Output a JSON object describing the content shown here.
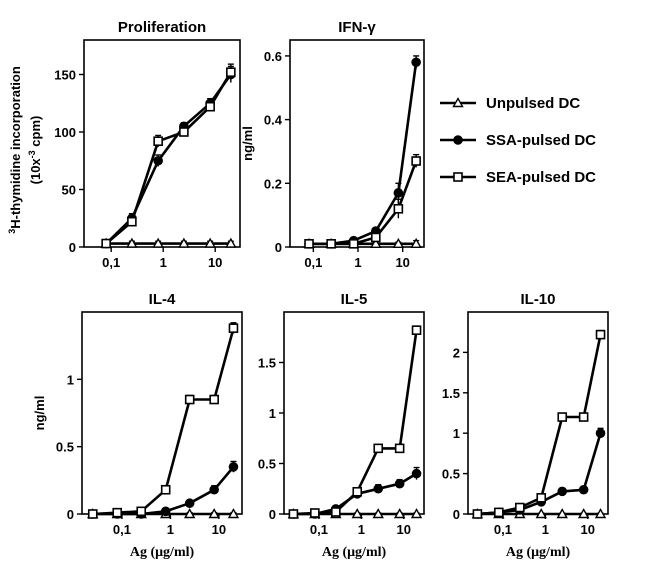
{
  "figure": {
    "legend": [
      {
        "name": "Unpulsed DC",
        "marker": "open-triangle"
      },
      {
        "name": "SSA-pulsed DC",
        "marker": "filled-circle"
      },
      {
        "name": "SEA-pulsed DC",
        "marker": "open-square"
      }
    ]
  },
  "chart_data": [
    {
      "id": "proliferation",
      "type": "line",
      "title": "Proliferation",
      "ylabel_sup": "3",
      "ylabel_main": "H-thymidine incorporation",
      "ylabel_line2": "(10x",
      "ylabel_line2_sup": "-3",
      "ylabel_line2_end": " cpm)",
      "xlabel": "",
      "xscale": "log",
      "xlim": [
        0.03,
        30
      ],
      "ylim": [
        0,
        180
      ],
      "xticks": [
        {
          "v": 0.1,
          "label": "0,1"
        },
        {
          "v": 1,
          "label": "1"
        },
        {
          "v": 10,
          "label": "10"
        }
      ],
      "yticks": [
        {
          "v": 0,
          "label": "0"
        },
        {
          "v": 50,
          "label": "50"
        },
        {
          "v": 100,
          "label": "100"
        },
        {
          "v": 150,
          "label": "150"
        }
      ],
      "series": [
        {
          "name": "Unpulsed DC",
          "marker": "open-triangle",
          "x": [
            0.08,
            0.25,
            0.8,
            2.5,
            8,
            20
          ],
          "y": [
            3,
            3,
            3,
            3,
            3,
            3
          ],
          "err": [
            2,
            2,
            2,
            2,
            2,
            2
          ]
        },
        {
          "name": "SSA-pulsed DC",
          "marker": "filled-circle",
          "x": [
            0.08,
            0.25,
            0.8,
            2.5,
            8,
            20
          ],
          "y": [
            3,
            25,
            75,
            105,
            125,
            150
          ],
          "err": [
            2,
            4,
            5,
            3,
            4,
            7
          ]
        },
        {
          "name": "SEA-pulsed DC",
          "marker": "open-square",
          "x": [
            0.08,
            0.25,
            0.8,
            2.5,
            8,
            20
          ],
          "y": [
            3,
            22,
            92,
            100,
            122,
            152
          ],
          "err": [
            2,
            4,
            5,
            3,
            4,
            7
          ]
        }
      ]
    },
    {
      "id": "ifn",
      "type": "line",
      "title": "IFN-γ",
      "ylabel": "ng/ml",
      "xlabel": "",
      "xscale": "log",
      "xlim": [
        0.03,
        30
      ],
      "ylim": [
        0,
        0.65
      ],
      "xticks": [
        {
          "v": 0.1,
          "label": "0,1"
        },
        {
          "v": 1,
          "label": "1"
        },
        {
          "v": 10,
          "label": "10"
        }
      ],
      "yticks": [
        {
          "v": 0,
          "label": "0"
        },
        {
          "v": 0.2,
          "label": "0.2"
        },
        {
          "v": 0.4,
          "label": "0.4"
        },
        {
          "v": 0.6,
          "label": "0.6"
        }
      ],
      "series": [
        {
          "name": "Unpulsed DC",
          "marker": "open-triangle",
          "x": [
            0.08,
            0.25,
            0.8,
            2.5,
            8,
            20
          ],
          "y": [
            0.01,
            0.01,
            0.01,
            0.01,
            0.01,
            0.01
          ],
          "err": [
            0.005,
            0.005,
            0.005,
            0.005,
            0.005,
            0.01
          ]
        },
        {
          "name": "SSA-pulsed DC",
          "marker": "filled-circle",
          "x": [
            0.08,
            0.25,
            0.8,
            2.5,
            8,
            20
          ],
          "y": [
            0.01,
            0.01,
            0.02,
            0.05,
            0.17,
            0.58
          ],
          "err": [
            0.005,
            0.005,
            0.005,
            0.01,
            0.03,
            0.02
          ]
        },
        {
          "name": "SEA-pulsed DC",
          "marker": "open-square",
          "x": [
            0.08,
            0.25,
            0.8,
            2.5,
            8,
            20
          ],
          "y": [
            0.01,
            0.01,
            0.01,
            0.03,
            0.12,
            0.27
          ],
          "err": [
            0.005,
            0.005,
            0.005,
            0.01,
            0.03,
            0.02
          ]
        }
      ]
    },
    {
      "id": "il4",
      "type": "line",
      "title": "IL-4",
      "ylabel": "ng/ml",
      "xlabel": "Ag (μg/ml)",
      "xscale": "log",
      "xlim": [
        0.015,
        30
      ],
      "ylim": [
        0,
        1.5
      ],
      "xticks": [
        {
          "v": 0.1,
          "label": "0,1"
        },
        {
          "v": 1,
          "label": "1"
        },
        {
          "v": 10,
          "label": "10"
        }
      ],
      "yticks": [
        {
          "v": 0,
          "label": "0"
        },
        {
          "v": 0.5,
          "label": "0.5"
        },
        {
          "v": 1,
          "label": "1"
        }
      ],
      "series": [
        {
          "name": "Unpulsed DC",
          "marker": "open-triangle",
          "x": [
            0.025,
            0.08,
            0.25,
            0.8,
            2.5,
            8,
            20
          ],
          "y": [
            0,
            0,
            0,
            0,
            0,
            0,
            0
          ],
          "err": [
            0.01,
            0.01,
            0.01,
            0.01,
            0.01,
            0.01,
            0.01
          ]
        },
        {
          "name": "SSA-pulsed DC",
          "marker": "filled-circle",
          "x": [
            0.025,
            0.08,
            0.25,
            0.8,
            2.5,
            8,
            20
          ],
          "y": [
            0,
            0,
            0,
            0.02,
            0.08,
            0.18,
            0.35
          ],
          "err": [
            0.01,
            0.01,
            0.01,
            0.01,
            0.02,
            0.03,
            0.04
          ]
        },
        {
          "name": "SEA-pulsed DC",
          "marker": "open-square",
          "x": [
            0.025,
            0.08,
            0.25,
            0.8,
            2.5,
            8,
            20
          ],
          "y": [
            0,
            0.01,
            0.02,
            0.18,
            0.85,
            0.85,
            1.38
          ],
          "err": [
            0.01,
            0.01,
            0.01,
            0.03,
            0.03,
            0.03,
            0.04
          ]
        }
      ]
    },
    {
      "id": "il5",
      "type": "line",
      "title": "IL-5",
      "ylabel": "",
      "xlabel": "Ag (μg/ml)",
      "xscale": "log",
      "xlim": [
        0.015,
        30
      ],
      "ylim": [
        0,
        2
      ],
      "xticks": [
        {
          "v": 0.1,
          "label": "0,1"
        },
        {
          "v": 1,
          "label": "1"
        },
        {
          "v": 10,
          "label": "10"
        }
      ],
      "yticks": [
        {
          "v": 0,
          "label": "0"
        },
        {
          "v": 0.5,
          "label": "0.5"
        },
        {
          "v": 1,
          "label": "1"
        },
        {
          "v": 1.5,
          "label": "1.5"
        }
      ],
      "series": [
        {
          "name": "Unpulsed DC",
          "marker": "open-triangle",
          "x": [
            0.025,
            0.08,
            0.25,
            0.8,
            2.5,
            8,
            20
          ],
          "y": [
            0,
            0,
            0,
            0,
            0,
            0,
            0
          ],
          "err": [
            0.01,
            0.01,
            0.01,
            0.01,
            0.01,
            0.01,
            0.01
          ]
        },
        {
          "name": "SSA-pulsed DC",
          "marker": "filled-circle",
          "x": [
            0.025,
            0.08,
            0.25,
            0.8,
            2.5,
            8,
            20
          ],
          "y": [
            0,
            0,
            0.05,
            0.2,
            0.25,
            0.3,
            0.4
          ],
          "err": [
            0.01,
            0.01,
            0.02,
            0.03,
            0.04,
            0.04,
            0.06
          ]
        },
        {
          "name": "SEA-pulsed DC",
          "marker": "open-square",
          "x": [
            0.025,
            0.08,
            0.25,
            0.8,
            2.5,
            8,
            20
          ],
          "y": [
            0,
            0.01,
            0.02,
            0.22,
            0.65,
            0.65,
            1.82
          ],
          "err": [
            0.01,
            0.01,
            0.01,
            0.03,
            0.03,
            0.03,
            0.04
          ]
        }
      ]
    },
    {
      "id": "il10",
      "type": "line",
      "title": "IL-10",
      "ylabel": "",
      "xlabel": "Ag (μg/ml)",
      "xscale": "log",
      "xlim": [
        0.015,
        30
      ],
      "ylim": [
        0,
        2.5
      ],
      "xticks": [
        {
          "v": 0.1,
          "label": "0,1"
        },
        {
          "v": 1,
          "label": "1"
        },
        {
          "v": 10,
          "label": "10"
        }
      ],
      "yticks": [
        {
          "v": 0,
          "label": "0"
        },
        {
          "v": 0.5,
          "label": "0.5"
        },
        {
          "v": 1,
          "label": "1"
        },
        {
          "v": 1.5,
          "label": "1.5"
        },
        {
          "v": 2,
          "label": "2"
        }
      ],
      "series": [
        {
          "name": "Unpulsed DC",
          "marker": "open-triangle",
          "x": [
            0.025,
            0.08,
            0.25,
            0.8,
            2.5,
            8,
            20
          ],
          "y": [
            0,
            0,
            0,
            0,
            0,
            0,
            0
          ],
          "err": [
            0.01,
            0.01,
            0.01,
            0.01,
            0.01,
            0.01,
            0.01
          ]
        },
        {
          "name": "SSA-pulsed DC",
          "marker": "filled-circle",
          "x": [
            0.025,
            0.08,
            0.25,
            0.8,
            2.5,
            8,
            20
          ],
          "y": [
            0,
            0.02,
            0.05,
            0.15,
            0.28,
            0.3,
            1.0
          ],
          "err": [
            0.01,
            0.01,
            0.02,
            0.03,
            0.04,
            0.04,
            0.06
          ]
        },
        {
          "name": "SEA-pulsed DC",
          "marker": "open-square",
          "x": [
            0.025,
            0.08,
            0.25,
            0.8,
            2.5,
            8,
            20
          ],
          "y": [
            0,
            0.02,
            0.08,
            0.2,
            1.2,
            1.2,
            2.22
          ],
          "err": [
            0.01,
            0.01,
            0.02,
            0.03,
            0.04,
            0.04,
            0.05
          ]
        }
      ]
    }
  ]
}
